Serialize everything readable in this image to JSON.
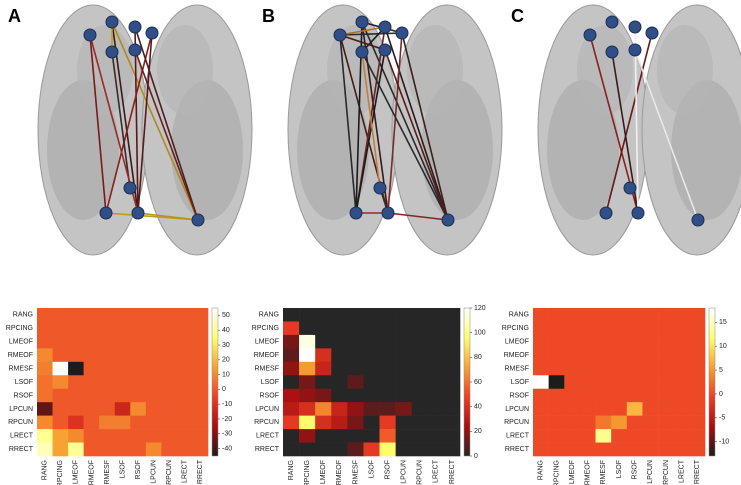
{
  "chart_data": [
    {
      "type": "heatmap",
      "panel": "A",
      "x_categories": [
        "RANG",
        "RPCING",
        "LMEOF",
        "RMEOF",
        "RMESF",
        "LSOF",
        "RSOF",
        "LPCUN",
        "RPCUN",
        "LRECT",
        "RRECT"
      ],
      "y_categories": [
        "RANG",
        "RPCING",
        "LMEOF",
        "RMEOF",
        "RMESF",
        "LSOF",
        "RSOF",
        "LPCUN",
        "RPCUN",
        "LRECT",
        "RRECT"
      ],
      "values": [
        [
          0,
          0,
          0,
          0,
          0,
          0,
          0,
          0,
          0,
          0,
          0
        ],
        [
          0,
          0,
          0,
          0,
          0,
          0,
          0,
          0,
          0,
          0,
          0
        ],
        [
          0,
          0,
          0,
          0,
          0,
          0,
          0,
          0,
          0,
          0,
          0
        ],
        [
          10,
          0,
          0,
          0,
          0,
          0,
          0,
          0,
          0,
          0,
          0
        ],
        [
          8,
          55,
          -45,
          0,
          0,
          0,
          0,
          0,
          0,
          0,
          0
        ],
        [
          5,
          10,
          0,
          0,
          0,
          0,
          0,
          0,
          0,
          0,
          0
        ],
        [
          5,
          0,
          0,
          0,
          0,
          0,
          0,
          0,
          0,
          0,
          0
        ],
        [
          -35,
          0,
          0,
          0,
          0,
          -15,
          10,
          0,
          0,
          0,
          0
        ],
        [
          10,
          0,
          -10,
          0,
          8,
          8,
          0,
          0,
          0,
          0,
          0
        ],
        [
          40,
          15,
          10,
          0,
          0,
          0,
          0,
          0,
          0,
          0,
          0
        ],
        [
          45,
          15,
          40,
          0,
          0,
          0,
          0,
          10,
          0,
          0,
          0
        ]
      ],
      "zlim": [
        -45,
        55
      ],
      "zticks": [
        50,
        40,
        30,
        20,
        10,
        0,
        -10,
        -20,
        -30,
        -40
      ],
      "colormap": [
        "#1c1c1c",
        "#a80f0f",
        "#ec3f26",
        "#f7a233",
        "#ffff70",
        "#ffffff"
      ]
    },
    {
      "type": "heatmap",
      "panel": "B",
      "x_categories": [
        "RANG",
        "RPCING",
        "LMEOF",
        "RMEOF",
        "RMESF",
        "LSOF",
        "RSOF",
        "LPCUN",
        "RPCUN",
        "LRECT",
        "RRECT"
      ],
      "y_categories": [
        "RANG",
        "RPCING",
        "LMEOF",
        "RMEOF",
        "RMESF",
        "LSOF",
        "RSOF",
        "LPCUN",
        "RPCUN",
        "LRECT",
        "RRECT"
      ],
      "values": [
        [
          0,
          0,
          0,
          0,
          0,
          0,
          0,
          0,
          0,
          0,
          0
        ],
        [
          45,
          0,
          0,
          0,
          0,
          0,
          0,
          0,
          0,
          0,
          0
        ],
        [
          15,
          115,
          0,
          0,
          0,
          0,
          0,
          0,
          0,
          0,
          0
        ],
        [
          10,
          120,
          40,
          0,
          0,
          0,
          0,
          0,
          0,
          0,
          0
        ],
        [
          20,
          70,
          35,
          0,
          0,
          0,
          0,
          0,
          0,
          0,
          0
        ],
        [
          0,
          15,
          0,
          0,
          10,
          0,
          0,
          0,
          0,
          0,
          0
        ],
        [
          25,
          20,
          15,
          0,
          0,
          0,
          0,
          0,
          0,
          0,
          0
        ],
        [
          30,
          40,
          65,
          35,
          20,
          10,
          10,
          15,
          0,
          0,
          0
        ],
        [
          45,
          95,
          40,
          30,
          15,
          0,
          45,
          0,
          0,
          0,
          0
        ],
        [
          0,
          20,
          0,
          0,
          0,
          0,
          55,
          0,
          0,
          0,
          0
        ],
        [
          0,
          0,
          0,
          0,
          10,
          45,
          95,
          0,
          0,
          0,
          0
        ]
      ],
      "zlim": [
        0,
        120
      ],
      "zticks": [
        120,
        100,
        80,
        60,
        40,
        20,
        0
      ],
      "colormap": [
        "#262626",
        "#a80f0f",
        "#ec3f26",
        "#f7a233",
        "#ffff70",
        "#ffffff"
      ]
    },
    {
      "type": "heatmap",
      "panel": "C",
      "x_categories": [
        "RANG",
        "RPCING",
        "LMEOF",
        "RMEOF",
        "RMESF",
        "LSOF",
        "RSOF",
        "LPCUN",
        "RPCUN",
        "LRECT",
        "RRECT"
      ],
      "y_categories": [
        "RANG",
        "RPCING",
        "LMEOF",
        "RMEOF",
        "RMESF",
        "LSOF",
        "RSOF",
        "LPCUN",
        "RPCUN",
        "LRECT",
        "RRECT"
      ],
      "values": [
        [
          0,
          0,
          0,
          0,
          0,
          0,
          0,
          0,
          0,
          0,
          0
        ],
        [
          0,
          0,
          0,
          0,
          0,
          0,
          0,
          0,
          0,
          0,
          0
        ],
        [
          0,
          0,
          0,
          0,
          0,
          0,
          0,
          0,
          0,
          0,
          0
        ],
        [
          0,
          0,
          0,
          0,
          0,
          0,
          0,
          0,
          0,
          0,
          0
        ],
        [
          0,
          0,
          0,
          0,
          0,
          0,
          0,
          0,
          0,
          0,
          0
        ],
        [
          18,
          -13,
          0,
          0,
          0,
          0,
          0,
          0,
          0,
          0,
          0
        ],
        [
          0,
          0,
          0,
          0,
          0,
          0,
          0,
          0,
          0,
          0,
          0
        ],
        [
          0,
          0,
          0,
          0,
          0,
          0,
          7,
          0,
          0,
          0,
          0
        ],
        [
          0,
          0,
          0,
          0,
          3,
          5,
          0,
          0,
          0,
          0,
          0
        ],
        [
          0,
          0,
          0,
          0,
          13,
          0,
          0,
          0,
          0,
          0,
          0
        ],
        [
          0,
          0,
          0,
          0,
          0,
          0,
          0,
          0,
          0,
          0,
          0
        ]
      ],
      "zlim": [
        -13,
        18
      ],
      "zticks": [
        15,
        10,
        5,
        0,
        -5,
        -10
      ],
      "colormap": [
        "#1c1c1c",
        "#a80f0f",
        "#ec3f26",
        "#f7a233",
        "#ffff70",
        "#ffffff"
      ]
    }
  ]
}
